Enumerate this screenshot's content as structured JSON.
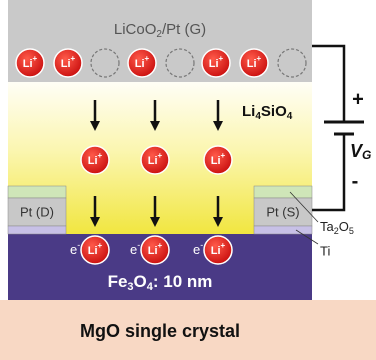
{
  "layers": {
    "gate": [
      "LiCoO",
      "2",
      "/Pt (G)"
    ],
    "electrolyte": [
      "Li",
      "4",
      "SiO",
      "4"
    ],
    "drain": "Pt (D)",
    "source": "Pt (S)",
    "capping": [
      "Ta",
      "2",
      "O",
      "5"
    ],
    "adhesion": "Ti",
    "channel": [
      "Fe",
      "3",
      "O",
      "4",
      ": 10 nm"
    ],
    "substrate": "MgO single crystal"
  },
  "ion": [
    "Li",
    "+"
  ],
  "electron": [
    "e",
    "-"
  ],
  "battery": {
    "plus": "+",
    "minus": "-",
    "label": [
      "V",
      "G"
    ]
  }
}
